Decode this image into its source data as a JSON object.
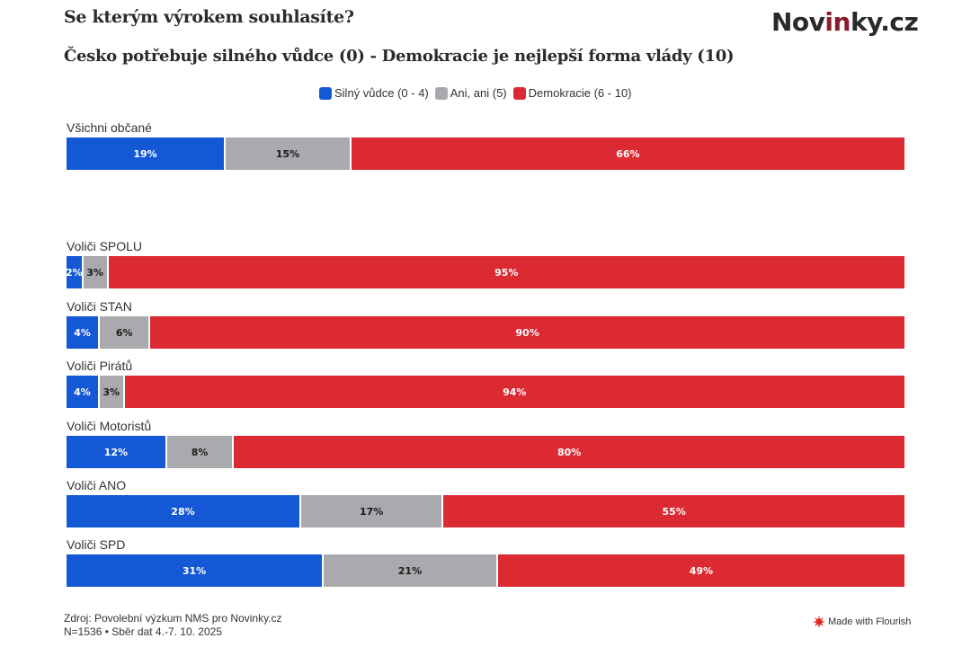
{
  "header": {
    "title": "Se kterým výrokem souhlasíte?",
    "subtitle": "Česko potřebuje silného vůdce (0) - Demokracie je nejlepší forma vlády (10)",
    "logo_main": "Nov",
    "logo_accent": "in",
    "logo_rest": "ky.cz"
  },
  "chart_data": {
    "type": "bar",
    "orientation": "horizontal",
    "stacked": true,
    "title": "Se kterým výrokem souhlasíte?",
    "subtitle": "Česko potřebuje silného vůdce (0) - Demokracie je nejlepší forma vlády (10)",
    "legend_position": "top-center",
    "xlim": [
      0,
      100
    ],
    "unit": "%",
    "categories": [
      "Všichni občané",
      "Voliči SPOLU",
      "Voliči STAN",
      "Voliči Pirátů",
      "Voliči Motoristů",
      "Voliči ANO",
      "Voliči SPD"
    ],
    "series": [
      {
        "name": "Silný vůdce (0 - 4)",
        "color": "#1558d6",
        "label_color": "#ffffff",
        "values": [
          19,
          2,
          4,
          4,
          12,
          28,
          31
        ]
      },
      {
        "name": "Ani, ani (5)",
        "color": "#a9aaad",
        "label_color": "#1a1a1a",
        "values": [
          15,
          3,
          6,
          3,
          8,
          17,
          21
        ]
      },
      {
        "name": "Demokracie (6 - 10)",
        "color": "#dc2a33",
        "label_color": "#ffffff",
        "values": [
          66,
          95,
          90,
          94,
          80,
          55,
          49
        ]
      }
    ]
  },
  "footer": {
    "source": "Zdroj: Povolební výzkum NMS pro Novinky.cz",
    "sample": "N=1536 • Sběr dat 4.-7. 10. 2025",
    "flourish": "Made with Flourish"
  }
}
